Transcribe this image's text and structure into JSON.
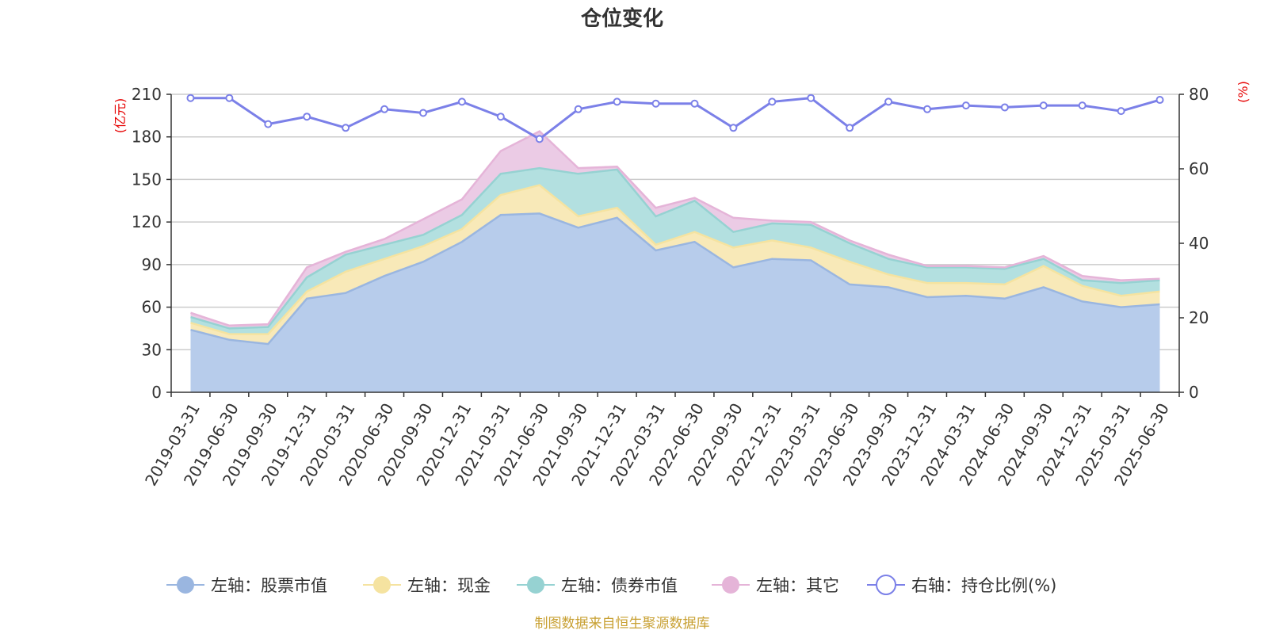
{
  "chart_data": {
    "type": "area",
    "title": "仓位变化",
    "y_left_unit": "(亿元)",
    "y_right_unit": "(%)",
    "y_left_ticks": [
      "0",
      "30",
      "60",
      "90",
      "120",
      "150",
      "180",
      "210"
    ],
    "y_right_ticks": [
      "0",
      "20",
      "40",
      "60",
      "80"
    ],
    "y_left_range": [
      0,
      210
    ],
    "y_right_range": [
      0,
      80
    ],
    "grid": true,
    "legend_position": "bottom",
    "categories": [
      "2019-03-31",
      "2019-06-30",
      "2019-09-30",
      "2019-12-31",
      "2020-03-31",
      "2020-06-30",
      "2020-09-30",
      "2020-12-31",
      "2021-03-31",
      "2021-06-30",
      "2021-09-30",
      "2021-12-31",
      "2022-03-31",
      "2022-06-30",
      "2022-09-30",
      "2022-12-31",
      "2023-03-31",
      "2023-06-30",
      "2023-09-30",
      "2023-12-31",
      "2024-03-31",
      "2024-06-30",
      "2024-09-30",
      "2024-12-31",
      "2025-03-31",
      "2025-06-30"
    ],
    "series": [
      {
        "name": "左轴：股票市值",
        "axis": "left",
        "stack": true,
        "color": "#9ab6e0",
        "fill": "#b7cceb",
        "values": [
          44,
          37,
          34,
          66,
          70,
          82,
          92,
          106,
          125,
          126,
          116,
          123,
          100,
          106,
          88,
          94,
          93,
          76,
          74,
          67,
          68,
          66,
          74,
          64,
          60,
          62
        ]
      },
      {
        "name": "左轴：现金",
        "axis": "left",
        "stack": true,
        "color": "#f5e3a0",
        "fill": "#f8e9b8",
        "values": [
          5,
          4,
          7,
          5,
          15,
          12,
          11,
          9,
          14,
          20,
          8,
          7,
          4,
          7,
          14,
          13,
          9,
          16,
          9,
          10,
          9,
          10,
          15,
          11,
          8,
          9
        ]
      },
      {
        "name": "左轴：债券市值",
        "axis": "left",
        "stack": true,
        "color": "#96d2d2",
        "fill": "#b3e0e0",
        "values": [
          4,
          4,
          5,
          10,
          12,
          10,
          8,
          10,
          15,
          12,
          30,
          27,
          20,
          22,
          11,
          12,
          16,
          13,
          11,
          11,
          11,
          11,
          5,
          4,
          9,
          8
        ]
      },
      {
        "name": "左轴：其它",
        "axis": "left",
        "stack": true,
        "color": "#e5b4d8",
        "fill": "#ebcbe5",
        "values": [
          3,
          2,
          2,
          7,
          2,
          4,
          11,
          11,
          16,
          26,
          4,
          2,
          6,
          2,
          10,
          2,
          2,
          2,
          3,
          1,
          1,
          1,
          2,
          3,
          2,
          1
        ]
      },
      {
        "name": "右轴：持仓比例(%)",
        "axis": "right",
        "stack": false,
        "color": "#7b80e8",
        "values": [
          79,
          79,
          72,
          74,
          71,
          76,
          75,
          78,
          74,
          68,
          76,
          78,
          77.5,
          77.5,
          71,
          78,
          79,
          71,
          78,
          76,
          77,
          76.5,
          77,
          77,
          75.5,
          78.5
        ]
      }
    ]
  },
  "source_note": "制图数据来自恒生聚源数据库"
}
